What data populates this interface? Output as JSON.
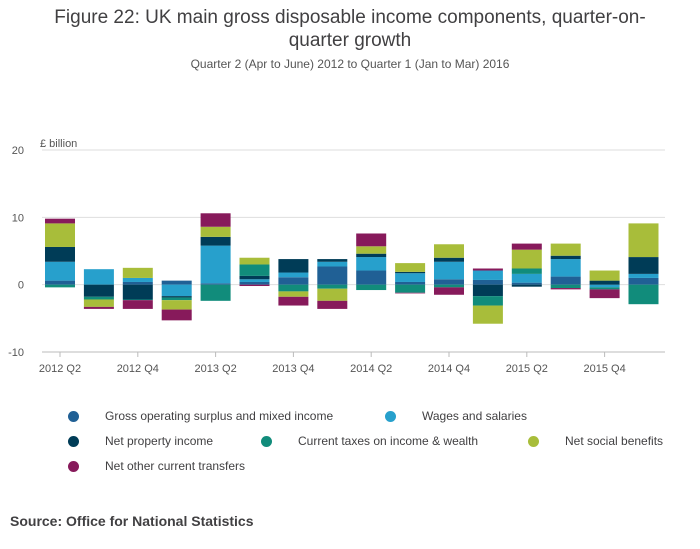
{
  "title_lines": [
    "Figure 22: UK main gross disposable income components, quarter-on-",
    "quarter growth"
  ],
  "subtitle": "Quarter 2 (Apr to June) 2012 to Quarter 1 (Jan to Mar) 2016",
  "source": "Source: Office for National Statistics",
  "colors": {
    "gross_operating": "#206095",
    "wages": "#27a0cc",
    "property": "#003c57",
    "taxes": "#118c7b",
    "social": "#a8bd3a",
    "other": "#871a5b",
    "grid": "#dedede",
    "axis": "#bbbbbb"
  },
  "chart_data": {
    "type": "bar",
    "stacked": true,
    "ylabel": "£ billion",
    "ylim": [
      -10,
      20
    ],
    "yticks": [
      -10,
      0,
      10,
      20
    ],
    "categories": [
      "2012 Q2",
      "2012 Q3",
      "2012 Q4",
      "2013 Q1",
      "2013 Q2",
      "2013 Q3",
      "2013 Q4",
      "2014 Q1",
      "2014 Q2",
      "2014 Q3",
      "2014 Q4",
      "2015 Q1",
      "2015 Q2",
      "2015 Q3",
      "2015 Q4",
      "2016 Q1"
    ],
    "xtick_labels": [
      "2012 Q2",
      "2012 Q4",
      "2013 Q2",
      "2013 Q4",
      "2014 Q2",
      "2014 Q4",
      "2015 Q2",
      "2015 Q4"
    ],
    "grid": true,
    "series": [
      {
        "name": "Gross operating surplus and mixed income",
        "key": "gross_operating",
        "values": [
          0.6,
          0,
          0.4,
          0.6,
          0.2,
          0.4,
          1.1,
          2.7,
          2.1,
          0.4,
          0.8,
          0.7,
          0.3,
          1.2,
          0,
          1.0
        ]
      },
      {
        "name": "Wages and salaries",
        "key": "wages",
        "values": [
          2.8,
          2.3,
          0.6,
          -1.7,
          5.6,
          0.4,
          0.7,
          0.7,
          2.0,
          1.3,
          2.6,
          1.4,
          1.3,
          2.6,
          -0.4,
          0.6
        ]
      },
      {
        "name": "Net property income",
        "key": "property",
        "values": [
          2.2,
          -1.8,
          -2.2,
          -0.2,
          1.3,
          0.5,
          2.0,
          0.4,
          0.5,
          0.2,
          0.6,
          -1.7,
          -0.3,
          0.5,
          0.6,
          2.5
        ]
      },
      {
        "name": "Current taxes on income & wealth",
        "key": "taxes",
        "values": [
          -0.4,
          -0.4,
          -0.1,
          -0.4,
          -2.4,
          1.7,
          -1.0,
          -0.6,
          -0.8,
          -1.2,
          -0.4,
          -1.4,
          0.8,
          -0.5,
          -0.3,
          -2.9
        ]
      },
      {
        "name": "Net social benefits",
        "key": "social",
        "values": [
          3.5,
          -1.1,
          1.5,
          -1.4,
          1.5,
          1.0,
          -0.8,
          -1.8,
          1.1,
          1.3,
          2.0,
          -2.7,
          2.8,
          1.8,
          1.5,
          5.0
        ]
      },
      {
        "name": "Net other current transfers",
        "key": "other",
        "values": [
          0.7,
          -0.3,
          -1.3,
          -1.6,
          2.0,
          -0.2,
          -1.3,
          -1.2,
          1.9,
          -0.1,
          -1.1,
          0.3,
          0.9,
          -0.2,
          -1.3,
          0
        ]
      }
    ],
    "legend_position": "bottom"
  }
}
